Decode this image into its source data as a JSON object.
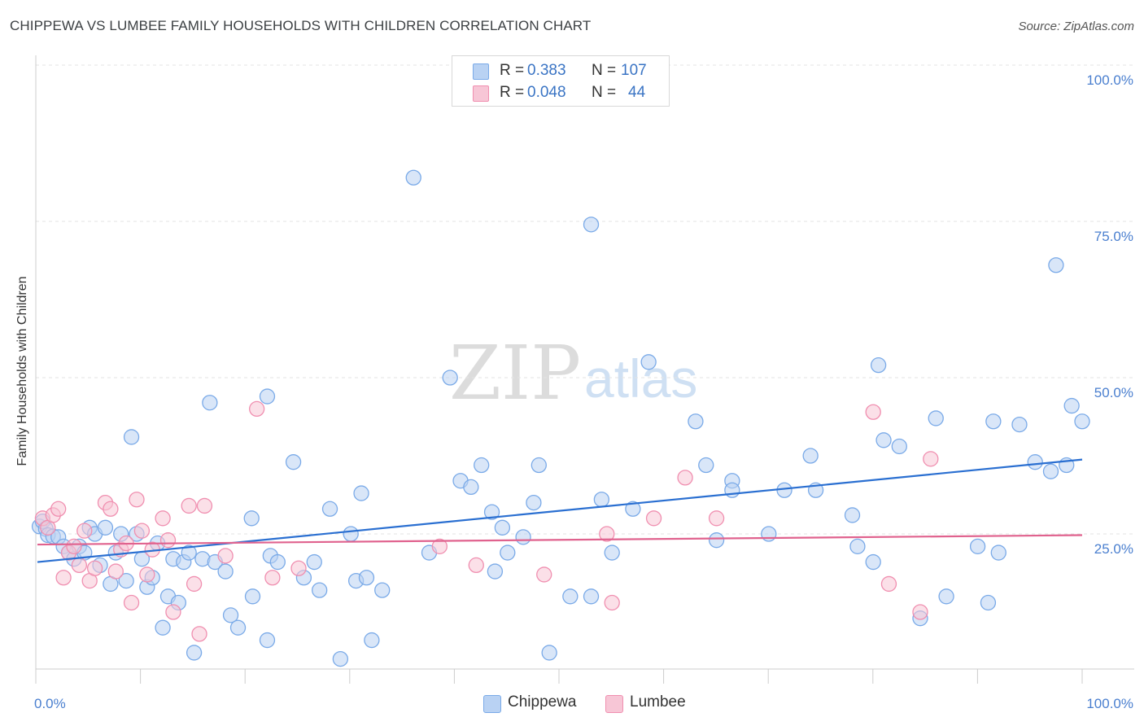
{
  "title": "CHIPPEWA VS LUMBEE FAMILY HOUSEHOLDS WITH CHILDREN CORRELATION CHART",
  "source": "Source: ZipAtlas.com",
  "watermark": {
    "zip": "ZIP",
    "atlas": "atlas"
  },
  "legend": {
    "rows": [
      {
        "r_label": "R =",
        "r_value": "0.383",
        "n_label": "N =",
        "n_value": "107"
      },
      {
        "r_label": "R =",
        "r_value": "0.048",
        "n_label": "N =",
        "n_value": "44"
      }
    ]
  },
  "chart_data": {
    "type": "scatter",
    "title": "CHIPPEWA VS LUMBEE FAMILY HOUSEHOLDS WITH CHILDREN CORRELATION CHART",
    "xlabel": "",
    "ylabel": "Family Households with Children",
    "xlim": [
      0,
      100
    ],
    "ylim": [
      0,
      100
    ],
    "x_tick_labels": [
      "0.0%",
      "100.0%"
    ],
    "y_ticks": [
      25,
      50,
      75,
      100
    ],
    "y_tick_labels": [
      "25.0%",
      "50.0%",
      "75.0%",
      "100.0%"
    ],
    "grid": "horizontal dashed",
    "legend_position": "top-center",
    "series": [
      {
        "name": "Chippewa",
        "color": "#7aaae8",
        "fill": "#b9d2f3",
        "trend": {
          "x": [
            0,
            100
          ],
          "y": [
            20.5,
            36.9
          ]
        },
        "points": [
          [
            0.2,
            26.2
          ],
          [
            0.5,
            27.0
          ],
          [
            0.8,
            25.8
          ],
          [
            1.0,
            24.8
          ],
          [
            1.5,
            24.6
          ],
          [
            2.0,
            24.5
          ],
          [
            2.5,
            23.0
          ],
          [
            3.0,
            22.0
          ],
          [
            3.5,
            21.0
          ],
          [
            4.0,
            23.0
          ],
          [
            4.5,
            22.0
          ],
          [
            5.0,
            26.0
          ],
          [
            5.5,
            25.0
          ],
          [
            6.0,
            20.0
          ],
          [
            6.5,
            26.0
          ],
          [
            7.0,
            17.0
          ],
          [
            7.5,
            22.0
          ],
          [
            8.0,
            25.0
          ],
          [
            8.5,
            17.5
          ],
          [
            9.0,
            40.5
          ],
          [
            9.5,
            25.0
          ],
          [
            10.0,
            21.0
          ],
          [
            10.5,
            16.5
          ],
          [
            11.0,
            18.0
          ],
          [
            11.5,
            23.5
          ],
          [
            12.0,
            10.0
          ],
          [
            12.5,
            15.0
          ],
          [
            13.0,
            21.0
          ],
          [
            13.5,
            14.0
          ],
          [
            14.0,
            20.5
          ],
          [
            14.5,
            22.0
          ],
          [
            15.0,
            6.0
          ],
          [
            15.8,
            21.0
          ],
          [
            16.5,
            46.0
          ],
          [
            17.0,
            20.5
          ],
          [
            18.0,
            19.0
          ],
          [
            18.5,
            12.0
          ],
          [
            19.2,
            10.0
          ],
          [
            20.5,
            27.5
          ],
          [
            20.6,
            15.0
          ],
          [
            22.0,
            47.0
          ],
          [
            22.0,
            8.0
          ],
          [
            22.3,
            21.5
          ],
          [
            23.0,
            20.5
          ],
          [
            24.5,
            36.5
          ],
          [
            25.5,
            18.0
          ],
          [
            26.5,
            20.5
          ],
          [
            27.0,
            16.0
          ],
          [
            28.0,
            29.0
          ],
          [
            29.0,
            5.0
          ],
          [
            30.0,
            25.0
          ],
          [
            30.5,
            17.5
          ],
          [
            31.0,
            31.5
          ],
          [
            31.5,
            18.0
          ],
          [
            32.0,
            8.0
          ],
          [
            33.0,
            16.0
          ],
          [
            36.0,
            82.0
          ],
          [
            37.5,
            22.0
          ],
          [
            39.5,
            50.0
          ],
          [
            40.5,
            33.5
          ],
          [
            41.5,
            32.5
          ],
          [
            42.5,
            36.0
          ],
          [
            43.5,
            28.5
          ],
          [
            43.8,
            19.0
          ],
          [
            44.5,
            26.0
          ],
          [
            45.0,
            22.0
          ],
          [
            46.5,
            24.5
          ],
          [
            47.5,
            30.0
          ],
          [
            48.0,
            36.0
          ],
          [
            49.0,
            6.0
          ],
          [
            51.0,
            15.0
          ],
          [
            53.0,
            15.0
          ],
          [
            53.0,
            74.5
          ],
          [
            54.0,
            30.5
          ],
          [
            55.0,
            22.0
          ],
          [
            57.0,
            29.0
          ],
          [
            58.5,
            52.5
          ],
          [
            63.0,
            43.0
          ],
          [
            64.0,
            36.0
          ],
          [
            65.0,
            24.0
          ],
          [
            66.5,
            33.5
          ],
          [
            66.5,
            32.0
          ],
          [
            70.0,
            25.0
          ],
          [
            71.5,
            32.0
          ],
          [
            74.0,
            37.5
          ],
          [
            74.5,
            32.0
          ],
          [
            78.0,
            28.0
          ],
          [
            78.5,
            23.0
          ],
          [
            80.0,
            20.5
          ],
          [
            80.5,
            52.0
          ],
          [
            81.0,
            40.0
          ],
          [
            82.5,
            39.0
          ],
          [
            84.5,
            11.5
          ],
          [
            86.0,
            43.5
          ],
          [
            87.0,
            15.0
          ],
          [
            90.0,
            23.0
          ],
          [
            91.0,
            14.0
          ],
          [
            91.5,
            43.0
          ],
          [
            92.0,
            22.0
          ],
          [
            94.0,
            42.5
          ],
          [
            95.5,
            36.5
          ],
          [
            97.0,
            35.0
          ],
          [
            97.5,
            68.0
          ],
          [
            98.5,
            36.0
          ],
          [
            99.0,
            45.5
          ],
          [
            100.0,
            43.0
          ]
        ]
      },
      {
        "name": "Lumbee",
        "color": "#f08fb0",
        "fill": "#f7c6d6",
        "trend": {
          "x": [
            0,
            100
          ],
          "y": [
            23.3,
            24.8
          ]
        },
        "points": [
          [
            0.5,
            27.5
          ],
          [
            1.0,
            26.0
          ],
          [
            1.5,
            28.0
          ],
          [
            2.0,
            29.0
          ],
          [
            2.5,
            18.0
          ],
          [
            3.0,
            22.0
          ],
          [
            3.5,
            23.0
          ],
          [
            4.0,
            20.0
          ],
          [
            4.5,
            25.5
          ],
          [
            5.0,
            17.5
          ],
          [
            5.5,
            19.5
          ],
          [
            6.5,
            30.0
          ],
          [
            7.0,
            29.0
          ],
          [
            7.5,
            19.0
          ],
          [
            8.0,
            22.5
          ],
          [
            8.5,
            23.5
          ],
          [
            9.0,
            14.0
          ],
          [
            9.5,
            30.5
          ],
          [
            10.0,
            25.5
          ],
          [
            10.5,
            18.5
          ],
          [
            11.0,
            22.5
          ],
          [
            12.0,
            27.5
          ],
          [
            12.5,
            24.0
          ],
          [
            13.0,
            12.5
          ],
          [
            14.5,
            29.5
          ],
          [
            15.0,
            17.0
          ],
          [
            15.5,
            9.0
          ],
          [
            16.0,
            29.5
          ],
          [
            18.0,
            21.5
          ],
          [
            21.0,
            45.0
          ],
          [
            22.5,
            18.0
          ],
          [
            25.0,
            19.5
          ],
          [
            38.5,
            23.0
          ],
          [
            42.0,
            20.0
          ],
          [
            48.5,
            18.5
          ],
          [
            54.5,
            25.0
          ],
          [
            55.0,
            14.0
          ],
          [
            59.0,
            27.5
          ],
          [
            62.0,
            34.0
          ],
          [
            65.0,
            27.5
          ],
          [
            80.0,
            44.5
          ],
          [
            81.5,
            17.0
          ],
          [
            84.5,
            12.5
          ],
          [
            85.5,
            37.0
          ]
        ]
      }
    ]
  },
  "bottom_legend": [
    {
      "label": "Chippewa",
      "color": "#b9d2f3",
      "border": "#7aaae8"
    },
    {
      "label": "Lumbee",
      "color": "#f7c6d6",
      "border": "#f08fb0"
    }
  ]
}
